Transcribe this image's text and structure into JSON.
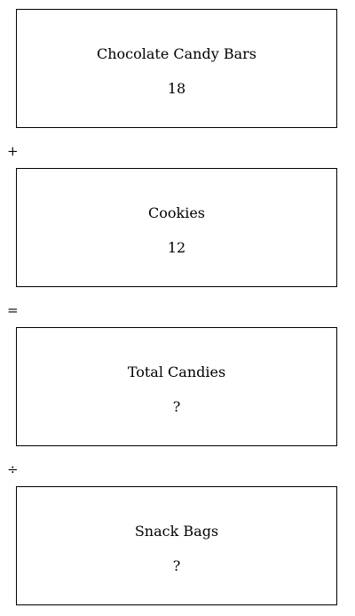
{
  "boxes": [
    {
      "title": "Chocolate Candy Bars",
      "value": "18"
    },
    {
      "title": "Cookies",
      "value": "12"
    },
    {
      "title": "Total Candies",
      "value": "?"
    },
    {
      "title": "Snack Bags",
      "value": "?"
    }
  ],
  "operators": [
    "+",
    "=",
    "÷"
  ]
}
